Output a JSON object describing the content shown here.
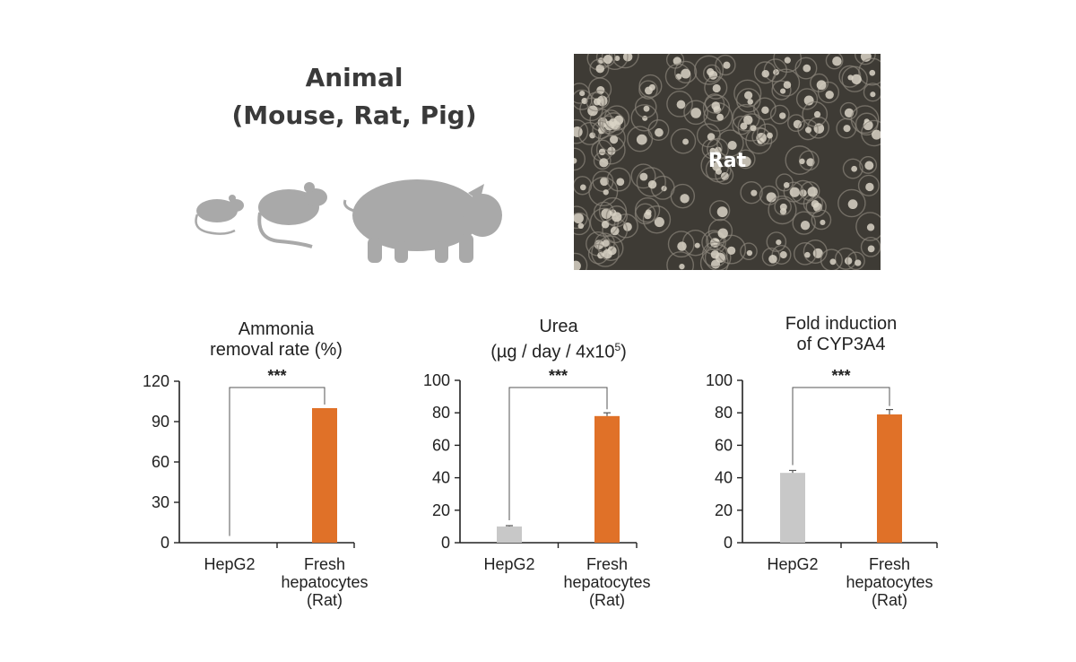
{
  "header": {
    "animal_title_line1": "Animal",
    "animal_title_line2": "(Mouse, Rat, Pig)"
  },
  "animals": [
    "mouse-icon",
    "rat-icon",
    "pig-icon"
  ],
  "micrograph": {
    "label": "Rat"
  },
  "colors": {
    "hepg2": "#c8c8c8",
    "fresh": "#e07128",
    "axis": "#222222",
    "icon": "#a9a9a9"
  },
  "chart_data": [
    {
      "type": "bar",
      "title_line1": "Ammonia",
      "title_line2": "removal rate (%)",
      "categories": [
        [
          "HepG2"
        ],
        [
          "Fresh",
          "hepatocytes",
          "(Rat)"
        ]
      ],
      "values": [
        0,
        100
      ],
      "errors": [
        0,
        0
      ],
      "ylim": [
        0,
        120
      ],
      "yticks": [
        0,
        30,
        60,
        90,
        120
      ],
      "significance": "***"
    },
    {
      "type": "bar",
      "title_line1": "Urea",
      "title_line2": "(µg / day / 4x10",
      "title_sup": "5",
      "title_tail": ")",
      "categories": [
        [
          "HepG2"
        ],
        [
          "Fresh",
          "hepatocytes",
          "(Rat)"
        ]
      ],
      "values": [
        10,
        78
      ],
      "errors": [
        0.5,
        2
      ],
      "ylim": [
        0,
        100
      ],
      "yticks": [
        0,
        20,
        40,
        60,
        80,
        100
      ],
      "significance": "***"
    },
    {
      "type": "bar",
      "title_line1": "Fold induction",
      "title_line2": "of CYP3A4",
      "categories": [
        [
          "HepG2"
        ],
        [
          "Fresh",
          "hepatocytes",
          "(Rat)"
        ]
      ],
      "values": [
        43,
        79
      ],
      "errors": [
        1.5,
        3
      ],
      "ylim": [
        0,
        100
      ],
      "yticks": [
        0,
        20,
        40,
        60,
        80,
        100
      ],
      "significance": "***"
    }
  ]
}
